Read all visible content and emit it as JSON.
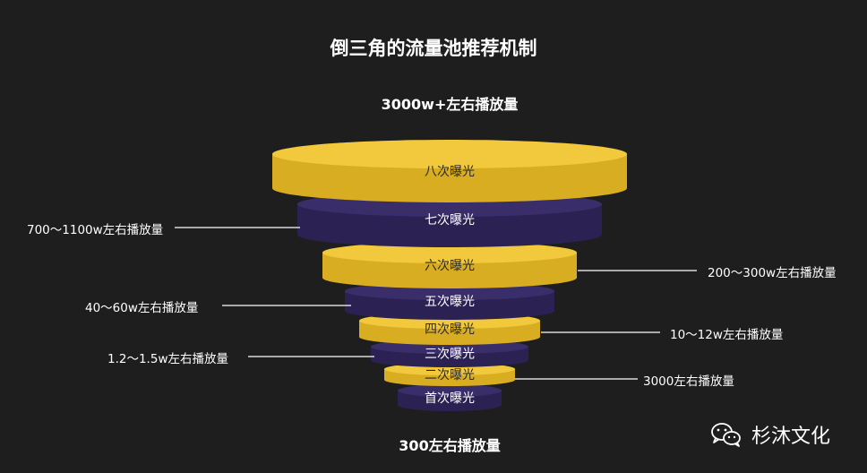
{
  "title": "倒三角的流量池推荐机制",
  "top_label": "3000w+左右播放量",
  "bottom_label": "300左右播放量",
  "colors": {
    "yellow": "#f2c93c",
    "yellow_side": "#d8ad22",
    "purple": "#3a2e6a",
    "purple_side": "#2b2152",
    "background": "#1e1e1e",
    "text_on_yellow": "#2a2a2a",
    "text_on_purple": "#ffffff"
  },
  "layers": [
    {
      "label": "八次曝光",
      "color": "yellow"
    },
    {
      "label": "七次曝光",
      "color": "purple"
    },
    {
      "label": "六次曝光",
      "color": "yellow"
    },
    {
      "label": "五次曝光",
      "color": "purple"
    },
    {
      "label": "四次曝光",
      "color": "yellow"
    },
    {
      "label": "三次曝光",
      "color": "purple"
    },
    {
      "label": "二次曝光",
      "color": "yellow"
    },
    {
      "label": "首次曝光",
      "color": "purple"
    }
  ],
  "left_labels": {
    "l1": "700～1100w左右播放量",
    "l2": "40～60w左右播放量",
    "l3": "1.2～1.5w左右播放量"
  },
  "right_labels": {
    "r1": "200～300w左右播放量",
    "r2": "10～12w左右播放量",
    "r3": "3000左右播放量"
  },
  "watermark": {
    "text": "杉沐文化",
    "icon": "wechat-icon"
  }
}
